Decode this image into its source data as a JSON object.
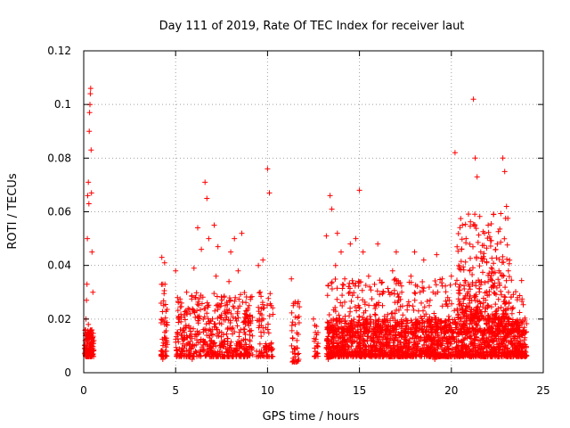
{
  "chart_data": {
    "type": "scatter",
    "title": "Day 111 of 2019, Rate Of TEC Index for receiver laut",
    "xlabel": "GPS time / hours",
    "ylabel": "ROTI / TECUs",
    "xlim": [
      0,
      25
    ],
    "ylim": [
      0,
      0.12
    ],
    "xticks": [
      0,
      5,
      10,
      15,
      20,
      25
    ],
    "xtick_labels": [
      "0",
      "5",
      "10",
      "15",
      "20",
      "25"
    ],
    "yticks": [
      0,
      0.02,
      0.04,
      0.06,
      0.08,
      0.1,
      0.12
    ],
    "ytick_labels": [
      "0",
      "0.02",
      "0.04",
      "0.06",
      "0.08",
      "0.1",
      "0.12"
    ],
    "grid": true,
    "marker": "+",
    "color": "#ff0000",
    "series": [
      {
        "name": "ROTI",
        "points": [
          [
            0.05,
            0.009
          ],
          [
            0.08,
            0.012
          ],
          [
            0.1,
            0.016
          ],
          [
            0.12,
            0.02
          ],
          [
            0.15,
            0.027
          ],
          [
            0.18,
            0.033
          ],
          [
            0.2,
            0.05
          ],
          [
            0.22,
            0.066
          ],
          [
            0.25,
            0.071
          ],
          [
            0.28,
            0.063
          ],
          [
            0.3,
            0.09
          ],
          [
            0.32,
            0.097
          ],
          [
            0.34,
            0.1
          ],
          [
            0.36,
            0.104
          ],
          [
            0.38,
            0.106
          ],
          [
            0.4,
            0.083
          ],
          [
            0.42,
            0.067
          ],
          [
            0.45,
            0.045
          ],
          [
            0.5,
            0.03
          ],
          [
            0.55,
            0.012
          ],
          [
            0.35,
            0.008
          ],
          [
            0.4,
            0.011
          ],
          [
            0.3,
            0.014
          ],
          [
            0.25,
            0.018
          ],
          [
            0.45,
            0.01
          ],
          [
            0.5,
            0.009
          ],
          [
            4.25,
            0.043
          ],
          [
            4.3,
            0.033
          ],
          [
            4.35,
            0.025
          ],
          [
            4.4,
            0.018
          ],
          [
            4.45,
            0.012
          ],
          [
            4.5,
            0.008
          ],
          [
            4.3,
            0.005
          ],
          [
            4.4,
            0.041
          ],
          [
            5.0,
            0.038
          ],
          [
            5.1,
            0.028
          ],
          [
            5.2,
            0.02
          ],
          [
            5.3,
            0.014
          ],
          [
            5.5,
            0.01
          ],
          [
            5.6,
            0.03
          ],
          [
            5.8,
            0.022
          ],
          [
            6.0,
            0.039
          ],
          [
            6.1,
            0.028
          ],
          [
            6.2,
            0.054
          ],
          [
            6.3,
            0.015
          ],
          [
            6.4,
            0.046
          ],
          [
            6.5,
            0.012
          ],
          [
            6.6,
            0.071
          ],
          [
            6.7,
            0.065
          ],
          [
            6.8,
            0.05
          ],
          [
            7.0,
            0.02
          ],
          [
            7.1,
            0.055
          ],
          [
            7.2,
            0.036
          ],
          [
            7.3,
            0.047
          ],
          [
            7.5,
            0.015
          ],
          [
            7.7,
            0.025
          ],
          [
            7.9,
            0.034
          ],
          [
            8.0,
            0.045
          ],
          [
            8.2,
            0.05
          ],
          [
            8.4,
            0.038
          ],
          [
            8.6,
            0.052
          ],
          [
            8.8,
            0.018
          ],
          [
            9.0,
            0.025
          ],
          [
            5.4,
            0.008
          ],
          [
            5.9,
            0.005
          ],
          [
            6.9,
            0.009
          ],
          [
            7.6,
            0.006
          ],
          [
            8.5,
            0.011
          ],
          [
            9.5,
            0.04
          ],
          [
            9.6,
            0.03
          ],
          [
            9.7,
            0.02
          ],
          [
            9.8,
            0.015
          ],
          [
            9.9,
            0.01
          ],
          [
            10.0,
            0.076
          ],
          [
            10.1,
            0.067
          ],
          [
            10.2,
            0.025
          ],
          [
            9.4,
            0.008
          ],
          [
            9.75,
            0.042
          ],
          [
            11.3,
            0.035
          ],
          [
            11.4,
            0.025
          ],
          [
            11.5,
            0.018
          ],
          [
            11.6,
            0.012
          ],
          [
            11.7,
            0.005
          ],
          [
            11.5,
            0.009
          ],
          [
            12.5,
            0.02
          ],
          [
            12.6,
            0.015
          ],
          [
            12.7,
            0.01
          ],
          [
            12.55,
            0.006
          ],
          [
            13.2,
            0.051
          ],
          [
            13.4,
            0.066
          ],
          [
            13.5,
            0.061
          ],
          [
            13.7,
            0.04
          ],
          [
            13.8,
            0.052
          ],
          [
            14.0,
            0.045
          ],
          [
            14.2,
            0.035
          ],
          [
            14.5,
            0.048
          ],
          [
            14.8,
            0.05
          ],
          [
            15.0,
            0.068
          ],
          [
            15.2,
            0.045
          ],
          [
            15.5,
            0.036
          ],
          [
            15.8,
            0.025
          ],
          [
            16.0,
            0.048
          ],
          [
            16.3,
            0.03
          ],
          [
            16.5,
            0.02
          ],
          [
            16.8,
            0.038
          ],
          [
            17.0,
            0.045
          ],
          [
            17.3,
            0.03
          ],
          [
            17.6,
            0.025
          ],
          [
            17.8,
            0.036
          ],
          [
            18.0,
            0.045
          ],
          [
            18.3,
            0.03
          ],
          [
            18.5,
            0.042
          ],
          [
            18.8,
            0.025
          ],
          [
            19.0,
            0.03
          ],
          [
            19.2,
            0.044
          ],
          [
            19.5,
            0.035
          ],
          [
            19.8,
            0.028
          ],
          [
            20.0,
            0.036
          ],
          [
            20.2,
            0.082
          ],
          [
            20.4,
            0.04
          ],
          [
            20.6,
            0.055
          ],
          [
            20.8,
            0.05
          ],
          [
            21.0,
            0.038
          ],
          [
            21.2,
            0.102
          ],
          [
            21.3,
            0.08
          ],
          [
            21.4,
            0.073
          ],
          [
            21.6,
            0.045
          ],
          [
            21.8,
            0.052
          ],
          [
            22.0,
            0.055
          ],
          [
            22.3,
            0.059
          ],
          [
            22.5,
            0.048
          ],
          [
            22.8,
            0.08
          ],
          [
            22.9,
            0.075
          ],
          [
            23.0,
            0.062
          ],
          [
            23.1,
            0.038
          ],
          [
            23.3,
            0.022
          ],
          [
            23.6,
            0.028
          ],
          [
            23.9,
            0.015
          ],
          [
            24.0,
            0.008
          ],
          [
            13.3,
            0.005
          ],
          [
            14.1,
            0.007
          ],
          [
            15.1,
            0.006
          ],
          [
            16.1,
            0.008
          ],
          [
            17.1,
            0.006
          ],
          [
            18.1,
            0.007
          ],
          [
            19.1,
            0.005
          ],
          [
            20.1,
            0.007
          ],
          [
            21.1,
            0.006
          ],
          [
            22.1,
            0.008
          ],
          [
            23.1,
            0.007
          ]
        ],
        "bands": [
          {
            "x": [
              0.05,
              0.55
            ],
            "y": [
              0.006,
              0.016
            ],
            "n": 150
          },
          {
            "x": [
              4.2,
              4.55
            ],
            "y": [
              0.006,
              0.034
            ],
            "n": 50
          },
          {
            "x": [
              5.0,
              9.2
            ],
            "y": [
              0.006,
              0.03
            ],
            "n": 520
          },
          {
            "x": [
              9.4,
              10.3
            ],
            "y": [
              0.006,
              0.03
            ],
            "n": 80
          },
          {
            "x": [
              11.3,
              11.75
            ],
            "y": [
              0.004,
              0.028
            ],
            "n": 40
          },
          {
            "x": [
              12.5,
              12.75
            ],
            "y": [
              0.006,
              0.019
            ],
            "n": 20
          },
          {
            "x": [
              13.2,
              24.1
            ],
            "y": [
              0.006,
              0.02
            ],
            "n": 1800
          },
          {
            "x": [
              13.2,
              24.1
            ],
            "y": [
              0.015,
              0.035
            ],
            "n": 500
          },
          {
            "x": [
              20.3,
              23.2
            ],
            "y": [
              0.02,
              0.06
            ],
            "n": 260
          }
        ]
      }
    ]
  }
}
